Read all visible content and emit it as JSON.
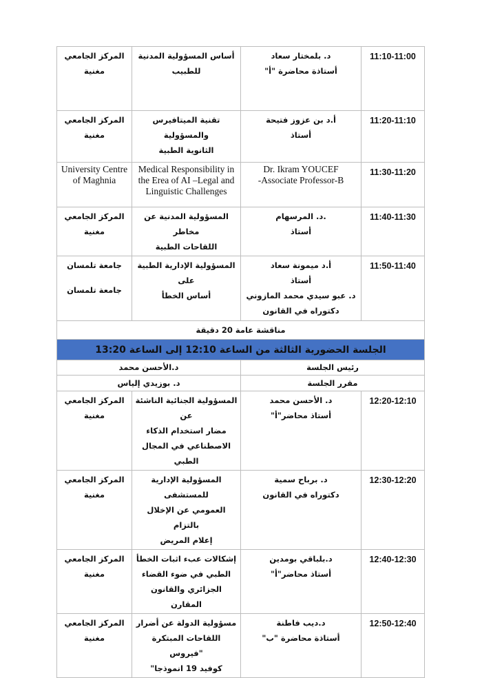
{
  "rows_a": [
    {
      "time": "11:10-11:00",
      "speaker": [
        "د. بلمختار سعاد",
        "أستاذة محاضرة \"أ\""
      ],
      "title": [
        "أساس المسؤولية المدنية",
        "للطبيب"
      ],
      "institution": [
        "المركز الجامعي",
        "مغنية"
      ]
    },
    {
      "time": "11:20-11:10",
      "speaker": [
        "أ.د بن عزوز فتيحة",
        "أستاذ"
      ],
      "title": [
        "تقنية الميتافيرس والمسؤولية",
        "الثانوية الطبية"
      ],
      "institution": [
        "المركز الجامعي",
        "مغنية"
      ]
    },
    {
      "time": "11:30-11:20",
      "speaker": [
        "Dr. Ikram YOUCEF",
        "Associate Professor-B-"
      ],
      "title": [
        "Medical Responsibility in the Erea of AI –Legal and Linguistic Challenges"
      ],
      "institution": [
        "University Centre of Maghnia"
      ]
    },
    {
      "time": "11:40-11:30",
      "speaker": [
        ".د. المرسهام",
        "أستاذ"
      ],
      "title": [
        "المسؤولية المدنية عن مخاطر",
        "اللقاحات الطبية"
      ],
      "institution": [
        "المركز الجامعي",
        "مغنية"
      ]
    },
    {
      "time": "11:50-11:40",
      "speaker": [
        "أ.د ميمونة سعاد",
        "أستاذ",
        "د. عبو سيدي محمد المازوني",
        "دكتوراه في القانون"
      ],
      "title": [
        "المسؤولية الإدارية الطبية على",
        "أساس الخطأ"
      ],
      "institution": [
        "جامعة تلمسان",
        "جامعة تلمسان"
      ]
    }
  ],
  "discussion": "مناقشة عامة 20 دقيقة",
  "session_title": "الجلسة الحضورية الثالثة من الساعة 12:10 إلى الساعة 13:20",
  "chair": {
    "label": "رئيس الجلسة",
    "value": "د.الأحسن محمد"
  },
  "rapporteur": {
    "label": "مقرر الجلسة",
    "value": "د. بوزيدي إلياس"
  },
  "rows_b": [
    {
      "time": "12:20-12:10",
      "speaker": [
        "د. الأحسن محمد",
        "أستاذ محاضر\"أ\""
      ],
      "title": [
        "المسؤولية الجنائية الناشئة عن",
        "مضار استخدام الذكاء",
        "الاصطناعي في المجال الطبي"
      ],
      "institution": [
        "المركز الجامعي",
        "مغنية"
      ]
    },
    {
      "time": "12:30-12:20",
      "speaker": [
        "د. برباح سمية",
        "دكتوراه في القانون"
      ],
      "title": [
        "المسؤولية الإدارية للمستشفى",
        "العمومي عن الإخلال بالتزام",
        "إعلام المريض"
      ],
      "institution": [
        "المركز الجامعي",
        "مغنية"
      ]
    },
    {
      "time": "12:40-12:30",
      "speaker": [
        "د.بلباقي بومدين",
        "أستاذ محاضر\"أ\""
      ],
      "title": [
        "إشكالات عبء اثبات الخطأ",
        "الطبي في ضوء القضاء",
        "الجزائري والقانون المقارن"
      ],
      "institution": [
        "المركز الجامعي",
        "مغنية"
      ]
    },
    {
      "time": "12:50-12:40",
      "speaker": [
        "د.ديب فاطنة",
        "أستاذة محاضرة \"ب\""
      ],
      "title": [
        "مسؤولية الدولة عن أضرار",
        "اللقاحات المبتكرة \"فيروس",
        "كوفيد 19 انموذجا\""
      ],
      "institution": [
        "المركز الجامعي",
        "مغنية"
      ]
    }
  ]
}
